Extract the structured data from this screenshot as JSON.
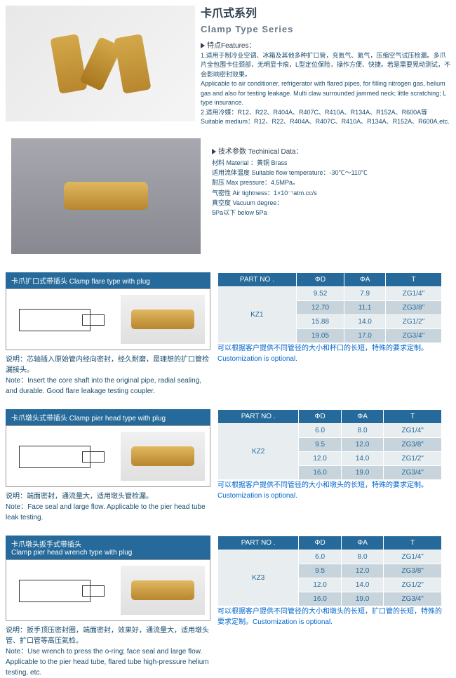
{
  "header": {
    "title_zh": "卡爪式系列",
    "title_en": "Clamp Type Series",
    "features_label": "特点Features：",
    "feature1_zh": "1.适用于制冷业空调、冰箱及其他多种扩口管，充氮气、氦气，压缩空气试压检漏。多爪片全包围卡住颈部，无明显卡痕，L型定位保险，操作方便、快捷。若是需要晃动测试，不会影响密封效果。",
    "feature1_en": "Applicable to air conditioner, refrigerator with flared pipes, for filling nitrogen gas, helium gas and also for testing leakage. Multi claw surrounded jammed neck; little scratching; L type insurance.",
    "feature2_zh": "2.适用冷媒：R12、R22、R404A、R407C、R410A、R134A、R152A、R600A等",
    "feature2_en": "Suitable medium：R12、R22、R404A、R407C、R410A、R134A、R152A、R600A,etc."
  },
  "tech": {
    "label": "技术参数 Techinical Data：",
    "material": "材料 Material ：黄铜 Brass",
    "temp": "适用流体温度 Suitable flow temperature：-30℃～110℃",
    "pressure": "耐压 Max pressure：4.5MPa。",
    "airtight": "气密性 Air tightness：1×10⁻⁷atm.cc/s",
    "vacuum": "真空度 Vacuum degree：",
    "vacuum2": "5Pa以下 below 5Pa"
  },
  "table_headers": {
    "part": "PART NO .",
    "d": "ΦD",
    "a": "ΦA",
    "t": "T"
  },
  "products": [
    {
      "bar": "卡爪扩口式带插头 Clamp flare type with plug",
      "note_zh": "说明：芯轴插入原始管内经向密封，经久耐磨，是理想的扩口管检漏接头。",
      "note_en": "Note：Insert the core shaft into the original pipe, radial sealing, and durable. Good flare leakage testing coupler.",
      "cust": "可以根据客户提供不同管径的大小和杯口的长短，特殊的要求定制。Customization is optional.",
      "part": "KZ1",
      "rows": [
        {
          "d": "9.52",
          "a": "7.9",
          "t": "ZG1/4\""
        },
        {
          "d": "12.70",
          "a": "11.1",
          "t": "ZG3/8\""
        },
        {
          "d": "15.88",
          "a": "14.0",
          "t": "ZG1/2\""
        },
        {
          "d": "19.05",
          "a": "17.0",
          "t": "ZG3/4\""
        }
      ]
    },
    {
      "bar": "卡爪墩头式带插头 Clamp pier head type with plug",
      "note_zh": "说明：端面密封，通流量大，适用墩头管检漏。",
      "note_en": "Note：Face seal and large flow. Applicable to the pier head tube leak testing.",
      "cust": "可以根据客户提供不同管径的大小和墩头的长短，特殊的要求定制。Customization is optional.",
      "part": "KZ2",
      "rows": [
        {
          "d": "6.0",
          "a": "8.0",
          "t": "ZG1/4\""
        },
        {
          "d": "9.5",
          "a": "12.0",
          "t": "ZG3/8\""
        },
        {
          "d": "12.0",
          "a": "14.0",
          "t": "ZG1/2\""
        },
        {
          "d": "16.0",
          "a": "19.0",
          "t": "ZG3/4\""
        }
      ]
    },
    {
      "bar": "卡爪墩头扳手式带插头\nClamp pier head wrench type with plug",
      "note_zh": "说明：扳手顶压密封圈，端面密封，效果好，通流量大，适用墩头管、扩口管等高压氦检。",
      "note_en": "Note：Use wrench to press the o-ring; face seal and large flow. Applicable to the pier head tube, flared tube high-pressure helium testing, etc.",
      "cust": "可以根据客户提供不同管径的大小和墩头的长短，扩口管的长短，特殊的要求定制。Customization is optional.",
      "part": "KZ3",
      "rows": [
        {
          "d": "6.0",
          "a": "8.0",
          "t": "ZG1/4\""
        },
        {
          "d": "9.5",
          "a": "12.0",
          "t": "ZG3/8\""
        },
        {
          "d": "12.0",
          "a": "14.0",
          "t": "ZG1/2\""
        },
        {
          "d": "16.0",
          "a": "19.0",
          "t": "ZG3/4\""
        }
      ]
    }
  ]
}
